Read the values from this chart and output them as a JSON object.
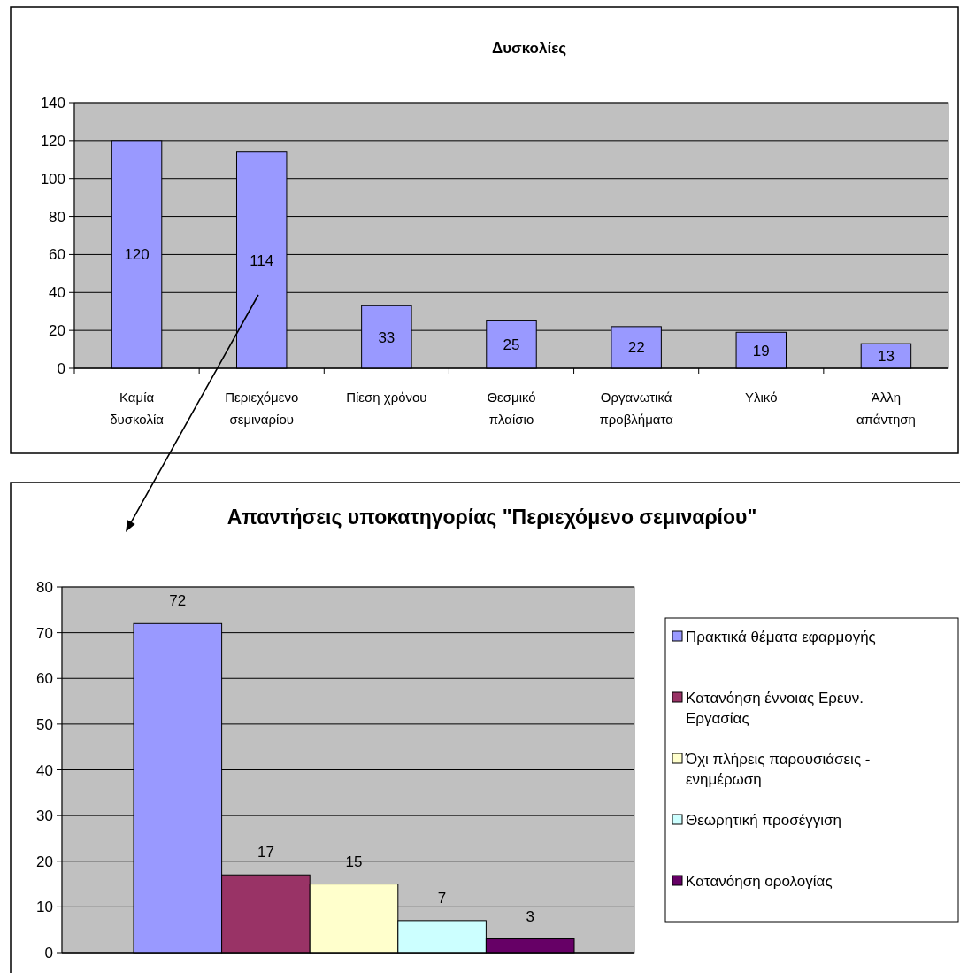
{
  "chart_data": [
    {
      "type": "bar",
      "title": "Δυσκολίες",
      "categories": [
        "Καμία δυσκολία",
        "Περιεχόμενο σεμιναρίου",
        "Πίεση χρόνου",
        "Θεσμικό πλαίσιο",
        "Οργανωτικά προβλήματα",
        "Υλικό",
        "Άλλη απάντηση"
      ],
      "values": [
        120,
        114,
        33,
        25,
        22,
        19,
        13
      ],
      "color": "#9999ff",
      "ylim": [
        0,
        140
      ],
      "yticks": [
        0,
        20,
        40,
        60,
        80,
        100,
        120,
        140
      ],
      "grid": "y",
      "data_labels": true
    },
    {
      "type": "bar",
      "title": "Απαντήσεις υποκατηγορίας \"Περιεχόμενο σεμιναρίου\"",
      "categories": [
        null
      ],
      "series": [
        {
          "name": "Πρακτικά θέματα εφαρμογής",
          "color": "#9999ff",
          "values": [
            72
          ]
        },
        {
          "name": "Κατανόηση έννοιας Ερευν. Εργασίας",
          "color": "#993366",
          "values": [
            17
          ]
        },
        {
          "name": "Όχι πλήρεις παρουσιάσεις - ενημέρωση",
          "color": "#ffffcc",
          "values": [
            15
          ]
        },
        {
          "name": "Θεωρητική προσέγγιση",
          "color": "#ccffff",
          "values": [
            7
          ]
        },
        {
          "name": "Κατανόηση ορολογίας",
          "color": "#660066",
          "values": [
            3
          ]
        }
      ],
      "ylim": [
        0,
        80
      ],
      "yticks": [
        0,
        10,
        20,
        30,
        40,
        50,
        60,
        70,
        80
      ],
      "grid": "y",
      "data_labels": true,
      "legend": "right"
    }
  ]
}
